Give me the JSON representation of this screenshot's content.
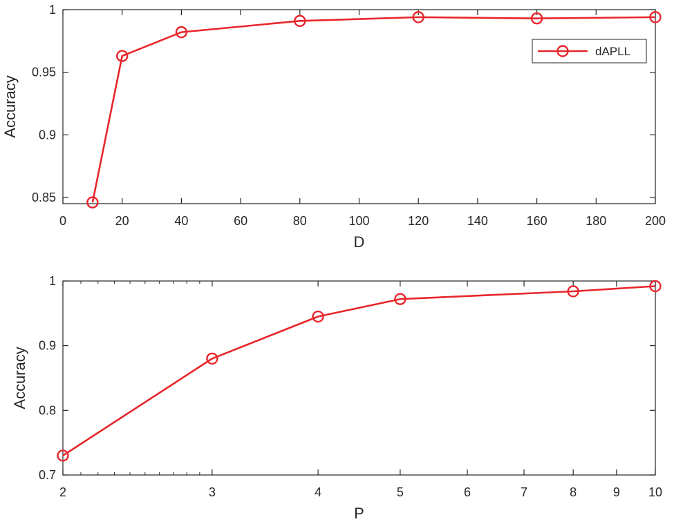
{
  "chart_data": [
    {
      "type": "line",
      "xlabel": "D",
      "ylabel": "Accuracy",
      "xscale": "linear",
      "xlim": [
        0,
        200
      ],
      "ylim": [
        0.845,
        1
      ],
      "xticks": [
        0,
        20,
        40,
        60,
        80,
        100,
        120,
        140,
        160,
        180,
        200
      ],
      "xtick_labels": [
        "0",
        "20",
        "40",
        "60",
        "80",
        "100",
        "120",
        "140",
        "160",
        "180",
        "200"
      ],
      "yticks": [
        0.85,
        0.9,
        0.95,
        1
      ],
      "ytick_labels": [
        "0.85",
        "0.9",
        "0.95",
        "1"
      ],
      "grid": false,
      "legend": {
        "show": true,
        "placement": "top-right"
      },
      "series": [
        {
          "name": "dAPLL",
          "color": "#e8262b",
          "marker": "circle-open",
          "x": [
            10,
            20,
            40,
            80,
            120,
            160,
            200
          ],
          "y": [
            0.846,
            0.963,
            0.982,
            0.991,
            0.994,
            0.993,
            0.994
          ]
        }
      ]
    },
    {
      "type": "line",
      "xlabel": "P",
      "ylabel": "Accuracy",
      "xscale": "log",
      "xlim": [
        2,
        10
      ],
      "ylim": [
        0.7,
        1
      ],
      "xticks": [
        2,
        3,
        4,
        5,
        6,
        7,
        8,
        9,
        10
      ],
      "xtick_labels": [
        "2",
        "3",
        "4",
        "5",
        "6",
        "7",
        "8",
        "9",
        "10"
      ],
      "yticks": [
        0.7,
        0.8,
        0.9,
        1
      ],
      "ytick_labels": [
        "0.7",
        "0.8",
        "0.9",
        "1"
      ],
      "grid": false,
      "legend": {
        "show": false
      },
      "series": [
        {
          "color": "#e8262b",
          "marker": "circle-open",
          "x": [
            2,
            3,
            4,
            5,
            8,
            10
          ],
          "y": [
            0.73,
            0.88,
            0.945,
            0.972,
            0.984,
            0.992
          ]
        }
      ]
    }
  ]
}
